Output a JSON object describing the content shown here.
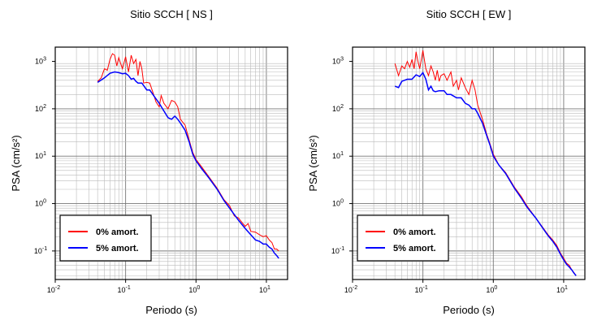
{
  "chart_data": [
    {
      "type": "line",
      "title": "Sitio SCCH [ NS ]",
      "xlabel": "Periodo (s)",
      "ylabel": "PSA (cm/s²)",
      "x_scale": "log",
      "y_scale": "log",
      "xlim": [
        0.01,
        20
      ],
      "ylim": [
        0.025,
        2000
      ],
      "grid": true,
      "legend_position": "bottom-left",
      "x_ticks": [
        {
          "value": 0.01,
          "base": "10",
          "exp": "-2"
        },
        {
          "value": 0.1,
          "base": "10",
          "exp": "-1"
        },
        {
          "value": 1,
          "base": "10",
          "exp": "0"
        },
        {
          "value": 10,
          "base": "10",
          "exp": "1"
        }
      ],
      "y_ticks": [
        {
          "value": 0.1,
          "base": "10",
          "exp": "-1"
        },
        {
          "value": 1,
          "base": "10",
          "exp": "0"
        },
        {
          "value": 10,
          "base": "10",
          "exp": "1"
        },
        {
          "value": 100,
          "base": "10",
          "exp": "2"
        },
        {
          "value": 1000,
          "base": "10",
          "exp": "3"
        }
      ],
      "series": [
        {
          "name": "0% amort.",
          "color": "#ff0000",
          "points": [
            [
              0.04,
              380
            ],
            [
              0.045,
              450
            ],
            [
              0.05,
              700
            ],
            [
              0.055,
              650
            ],
            [
              0.06,
              1100
            ],
            [
              0.065,
              1450
            ],
            [
              0.07,
              1350
            ],
            [
              0.075,
              800
            ],
            [
              0.08,
              1200
            ],
            [
              0.085,
              900
            ],
            [
              0.09,
              700
            ],
            [
              0.1,
              1250
            ],
            [
              0.11,
              600
            ],
            [
              0.12,
              1350
            ],
            [
              0.13,
              900
            ],
            [
              0.14,
              1100
            ],
            [
              0.15,
              500
            ],
            [
              0.16,
              1000
            ],
            [
              0.17,
              700
            ],
            [
              0.18,
              350
            ],
            [
              0.2,
              360
            ],
            [
              0.22,
              350
            ],
            [
              0.25,
              200
            ],
            [
              0.27,
              140
            ],
            [
              0.3,
              110
            ],
            [
              0.32,
              190
            ],
            [
              0.35,
              130
            ],
            [
              0.4,
              100
            ],
            [
              0.45,
              150
            ],
            [
              0.5,
              140
            ],
            [
              0.55,
              110
            ],
            [
              0.6,
              60
            ],
            [
              0.7,
              45
            ],
            [
              0.8,
              22
            ],
            [
              0.9,
              12
            ],
            [
              1.0,
              8.5
            ],
            [
              1.2,
              6
            ],
            [
              1.5,
              3.8
            ],
            [
              2.0,
              2.1
            ],
            [
              2.5,
              1.2
            ],
            [
              3.0,
              0.9
            ],
            [
              3.5,
              0.55
            ],
            [
              4.0,
              0.5
            ],
            [
              4.5,
              0.4
            ],
            [
              5.0,
              0.33
            ],
            [
              5.5,
              0.38
            ],
            [
              6.0,
              0.26
            ],
            [
              7.0,
              0.25
            ],
            [
              8.0,
              0.22
            ],
            [
              9.0,
              0.2
            ],
            [
              10.0,
              0.21
            ],
            [
              11.0,
              0.17
            ],
            [
              12.0,
              0.15
            ],
            [
              13.0,
              0.11
            ],
            [
              14.0,
              0.11
            ],
            [
              15.0,
              0.1
            ]
          ]
        },
        {
          "name": "5% amort.",
          "color": "#0000ff",
          "points": [
            [
              0.04,
              360
            ],
            [
              0.05,
              450
            ],
            [
              0.06,
              560
            ],
            [
              0.07,
              600
            ],
            [
              0.08,
              580
            ],
            [
              0.09,
              550
            ],
            [
              0.1,
              560
            ],
            [
              0.11,
              500
            ],
            [
              0.12,
              420
            ],
            [
              0.13,
              440
            ],
            [
              0.14,
              380
            ],
            [
              0.15,
              350
            ],
            [
              0.17,
              350
            ],
            [
              0.2,
              250
            ],
            [
              0.22,
              250
            ],
            [
              0.25,
              190
            ],
            [
              0.3,
              130
            ],
            [
              0.35,
              90
            ],
            [
              0.4,
              65
            ],
            [
              0.45,
              60
            ],
            [
              0.5,
              70
            ],
            [
              0.55,
              60
            ],
            [
              0.6,
              50
            ],
            [
              0.7,
              35
            ],
            [
              0.8,
              20
            ],
            [
              0.9,
              11
            ],
            [
              1.0,
              8
            ],
            [
              1.2,
              5.5
            ],
            [
              1.5,
              3.6
            ],
            [
              2.0,
              2.0
            ],
            [
              2.5,
              1.15
            ],
            [
              3.0,
              0.8
            ],
            [
              4.0,
              0.45
            ],
            [
              5.0,
              0.3
            ],
            [
              6.0,
              0.22
            ],
            [
              7.0,
              0.17
            ],
            [
              8.0,
              0.16
            ],
            [
              9.0,
              0.14
            ],
            [
              10.0,
              0.14
            ],
            [
              11.0,
              0.12
            ],
            [
              12.0,
              0.11
            ],
            [
              13.0,
              0.09
            ],
            [
              14.0,
              0.08
            ],
            [
              15.0,
              0.07
            ]
          ]
        }
      ]
    },
    {
      "type": "line",
      "title": "Sitio SCCH [ EW ]",
      "xlabel": "Periodo (s)",
      "ylabel": "PSA (cm/s²)",
      "x_scale": "log",
      "y_scale": "log",
      "xlim": [
        0.01,
        20
      ],
      "ylim": [
        0.025,
        2000
      ],
      "grid": true,
      "legend_position": "bottom-left",
      "x_ticks": [
        {
          "value": 0.01,
          "base": "10",
          "exp": "-2"
        },
        {
          "value": 0.1,
          "base": "10",
          "exp": "-1"
        },
        {
          "value": 1,
          "base": "10",
          "exp": "0"
        },
        {
          "value": 10,
          "base": "10",
          "exp": "1"
        }
      ],
      "y_ticks": [
        {
          "value": 0.1,
          "base": "10",
          "exp": "-1"
        },
        {
          "value": 1,
          "base": "10",
          "exp": "0"
        },
        {
          "value": 10,
          "base": "10",
          "exp": "1"
        },
        {
          "value": 100,
          "base": "10",
          "exp": "2"
        },
        {
          "value": 1000,
          "base": "10",
          "exp": "3"
        }
      ],
      "series": [
        {
          "name": "0% amort.",
          "color": "#ff0000",
          "points": [
            [
              0.04,
              900
            ],
            [
              0.045,
              500
            ],
            [
              0.05,
              800
            ],
            [
              0.055,
              700
            ],
            [
              0.06,
              1000
            ],
            [
              0.065,
              750
            ],
            [
              0.07,
              1100
            ],
            [
              0.075,
              700
            ],
            [
              0.08,
              1600
            ],
            [
              0.085,
              1000
            ],
            [
              0.09,
              700
            ],
            [
              0.1,
              1700
            ],
            [
              0.11,
              700
            ],
            [
              0.12,
              500
            ],
            [
              0.13,
              800
            ],
            [
              0.14,
              600
            ],
            [
              0.15,
              400
            ],
            [
              0.16,
              650
            ],
            [
              0.17,
              380
            ],
            [
              0.18,
              500
            ],
            [
              0.2,
              550
            ],
            [
              0.22,
              400
            ],
            [
              0.25,
              600
            ],
            [
              0.27,
              300
            ],
            [
              0.3,
              400
            ],
            [
              0.32,
              250
            ],
            [
              0.35,
              450
            ],
            [
              0.4,
              280
            ],
            [
              0.45,
              200
            ],
            [
              0.5,
              400
            ],
            [
              0.55,
              250
            ],
            [
              0.6,
              120
            ],
            [
              0.7,
              60
            ],
            [
              0.8,
              30
            ],
            [
              0.9,
              18
            ],
            [
              1.0,
              11
            ],
            [
              1.2,
              6.5
            ],
            [
              1.5,
              4.5
            ],
            [
              2.0,
              2.2
            ],
            [
              2.5,
              1.4
            ],
            [
              3.0,
              0.9
            ],
            [
              4.0,
              0.5
            ],
            [
              5.0,
              0.32
            ],
            [
              6.0,
              0.22
            ],
            [
              7.0,
              0.17
            ],
            [
              8.0,
              0.13
            ],
            [
              9.0,
              0.09
            ],
            [
              10.0,
              0.07
            ],
            [
              11.0,
              0.055
            ],
            [
              12.0,
              0.05
            ],
            [
              13.0,
              0.04
            ],
            [
              14.0,
              0.035
            ],
            [
              15.0,
              0.03
            ]
          ]
        },
        {
          "name": "5% amort.",
          "color": "#0000ff",
          "points": [
            [
              0.04,
              300
            ],
            [
              0.045,
              280
            ],
            [
              0.05,
              380
            ],
            [
              0.06,
              420
            ],
            [
              0.07,
              420
            ],
            [
              0.08,
              520
            ],
            [
              0.09,
              480
            ],
            [
              0.1,
              580
            ],
            [
              0.11,
              420
            ],
            [
              0.12,
              250
            ],
            [
              0.13,
              300
            ],
            [
              0.14,
              240
            ],
            [
              0.15,
              230
            ],
            [
              0.17,
              240
            ],
            [
              0.2,
              240
            ],
            [
              0.22,
              200
            ],
            [
              0.25,
              200
            ],
            [
              0.3,
              170
            ],
            [
              0.35,
              170
            ],
            [
              0.4,
              130
            ],
            [
              0.45,
              120
            ],
            [
              0.5,
              100
            ],
            [
              0.55,
              100
            ],
            [
              0.6,
              80
            ],
            [
              0.7,
              50
            ],
            [
              0.8,
              28
            ],
            [
              0.9,
              17
            ],
            [
              1.0,
              10
            ],
            [
              1.2,
              6.5
            ],
            [
              1.5,
              4.3
            ],
            [
              2.0,
              2.1
            ],
            [
              2.5,
              1.3
            ],
            [
              3.0,
              0.85
            ],
            [
              4.0,
              0.5
            ],
            [
              5.0,
              0.31
            ],
            [
              6.0,
              0.21
            ],
            [
              7.0,
              0.16
            ],
            [
              8.0,
              0.12
            ],
            [
              9.0,
              0.085
            ],
            [
              10.0,
              0.065
            ],
            [
              11.0,
              0.052
            ],
            [
              12.0,
              0.046
            ],
            [
              13.0,
              0.04
            ],
            [
              14.0,
              0.034
            ],
            [
              15.0,
              0.03
            ]
          ]
        }
      ]
    }
  ]
}
